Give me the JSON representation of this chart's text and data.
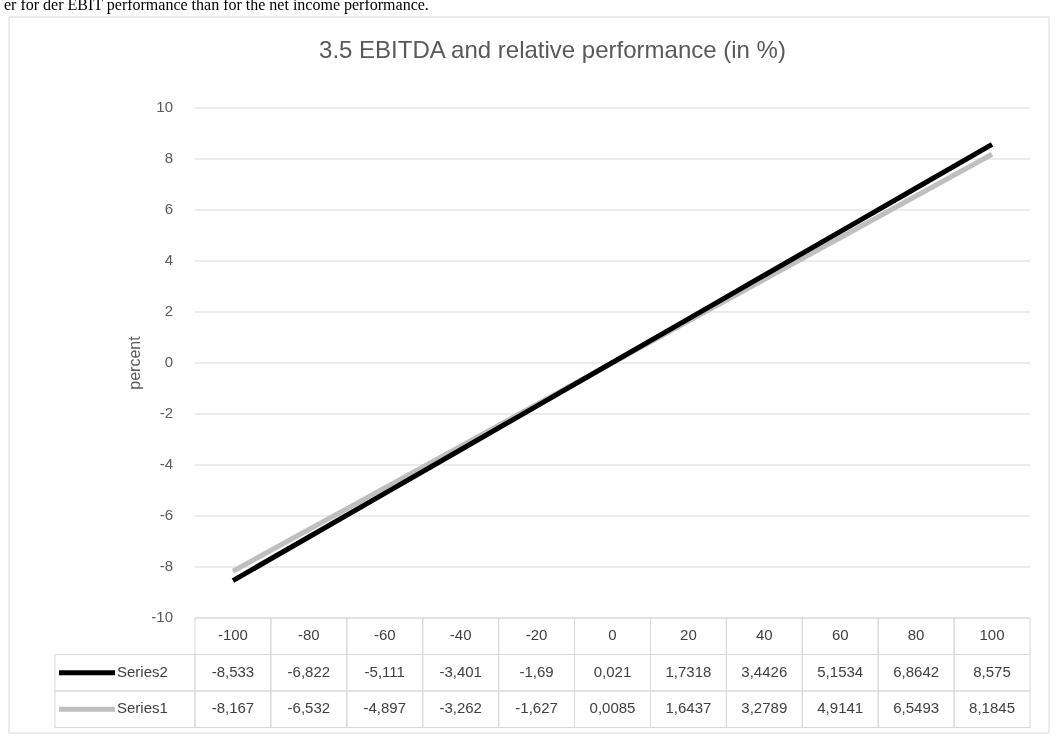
{
  "chart_data": {
    "type": "line",
    "title": "3.5 EBITDA and relative performance (in %)",
    "ylabel": "percent",
    "annotations": [
      "er for der EBIT performance than for the net income performance."
    ],
    "categories": [
      "-100",
      "-80",
      "-60",
      "-40",
      "-20",
      "0",
      "20",
      "40",
      "60",
      "80",
      "100"
    ],
    "series": [
      {
        "name": "Series2",
        "color": "#000000",
        "values": [
          -8.533,
          -6.822,
          -5.111,
          -3.401,
          -1.69,
          0.021,
          1.7318,
          3.4426,
          5.1534,
          6.8642,
          8.575
        ],
        "value_labels": [
          "-8,533",
          "-6,822",
          "-5,111",
          "-3,401",
          "-1,69",
          "0,021",
          "1,7318",
          "3,4426",
          "5,1534",
          "6,8642",
          "8,575"
        ]
      },
      {
        "name": "Series1",
        "color": "#bfbfbf",
        "values": [
          -8.167,
          -6.532,
          -4.897,
          -3.262,
          -1.627,
          0.0085,
          1.6437,
          3.2789,
          4.9141,
          6.5493,
          8.1845
        ],
        "value_labels": [
          "-8,167",
          "-6,532",
          "-4,897",
          "-3,262",
          "-1,627",
          "0,0085",
          "1,6437",
          "3,2789",
          "4,9141",
          "6,5493",
          "8,1845"
        ]
      }
    ],
    "ylim": [
      -10,
      10
    ],
    "yticks": [
      -10,
      -8,
      -6,
      -4,
      -2,
      0,
      2,
      4,
      6,
      8,
      10
    ],
    "grid": "y",
    "legend": "bottom",
    "marker": "none",
    "line_style": "solid"
  }
}
